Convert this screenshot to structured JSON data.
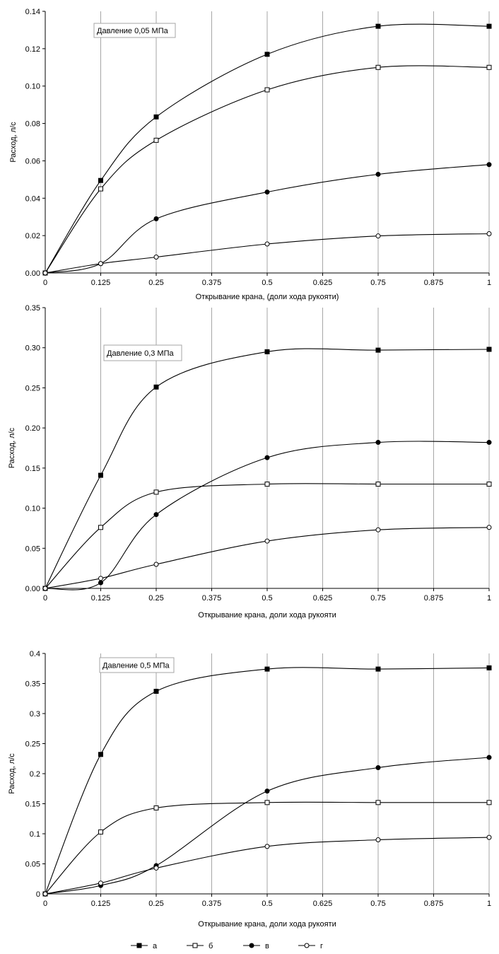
{
  "chart_data": [
    {
      "type": "line",
      "annotation": "Давление 0,05 МПа",
      "xlabel": "Открывание крана, (доли хода рукояти)",
      "ylabel": "Расход, л/с",
      "x": [
        0,
        0.125,
        0.25,
        0.5,
        0.75,
        1
      ],
      "x_ticks": [
        "0",
        "0.125",
        "0.25",
        "0.375",
        "0.5",
        "0.625",
        "0.75",
        "0.875",
        "1"
      ],
      "y_ticks": [
        "0.00",
        "0.02",
        "0.04",
        "0.06",
        "0.08",
        "0.10",
        "0.12",
        "0.14"
      ],
      "xlim": [
        0,
        1
      ],
      "ylim": [
        0,
        0.14
      ],
      "grid": "vertical",
      "series": [
        {
          "name": "а",
          "marker": "filled-square",
          "values": [
            0,
            0.0495,
            0.0835,
            0.117,
            0.132,
            0.132
          ]
        },
        {
          "name": "б",
          "marker": "open-square",
          "values": [
            0,
            0.045,
            0.071,
            0.098,
            0.11,
            0.11
          ]
        },
        {
          "name": "в",
          "marker": "filled-circle",
          "values": [
            0,
            0.005,
            0.029,
            0.0433,
            0.0528,
            0.058
          ]
        },
        {
          "name": "г",
          "marker": "open-circle",
          "values": [
            0,
            0.005,
            0.0085,
            0.0155,
            0.0198,
            0.021
          ]
        }
      ]
    },
    {
      "type": "line",
      "annotation": "Давление 0,3 МПа",
      "xlabel": "Открывание крана,  доли хода рукояти",
      "ylabel": "Расход, л/с",
      "x": [
        0,
        0.125,
        0.25,
        0.5,
        0.75,
        1
      ],
      "x_ticks": [
        "0",
        "0.125",
        "0.25",
        "0.375",
        "0.5",
        "0.625",
        "0.75",
        "0.875",
        "1"
      ],
      "y_ticks": [
        "0.00",
        "0.05",
        "0.10",
        "0.15",
        "0.20",
        "0.25",
        "0.30",
        "0.35"
      ],
      "xlim": [
        0,
        1
      ],
      "ylim": [
        0,
        0.35
      ],
      "grid": "vertical",
      "series": [
        {
          "name": "а",
          "marker": "filled-square",
          "values": [
            0,
            0.141,
            0.251,
            0.295,
            0.297,
            0.298
          ]
        },
        {
          "name": "б",
          "marker": "open-square",
          "values": [
            0,
            0.076,
            0.12,
            0.13,
            0.13,
            0.13
          ]
        },
        {
          "name": "в",
          "marker": "filled-circle",
          "values": [
            0,
            0.007,
            0.092,
            0.163,
            0.182,
            0.182
          ]
        },
        {
          "name": "г",
          "marker": "open-circle",
          "values": [
            0,
            0.0125,
            0.03,
            0.059,
            0.073,
            0.076
          ]
        }
      ]
    },
    {
      "type": "line",
      "annotation": "Давление 0,5 МПа",
      "xlabel": "Открывание крана, доли хода рукояти",
      "ylabel": "Расход, л/с",
      "x": [
        0,
        0.125,
        0.25,
        0.5,
        0.75,
        1
      ],
      "x_ticks": [
        "0",
        "0.125",
        "0.25",
        "0.375",
        "0.5",
        "0.625",
        "0.75",
        "0.875",
        "1"
      ],
      "y_ticks": [
        "0",
        "0.05",
        "0.1",
        "0.15",
        "0.2",
        "0.25",
        "0.3",
        "0.35",
        "0.4"
      ],
      "xlim": [
        0,
        1
      ],
      "ylim": [
        0,
        0.4
      ],
      "grid": "vertical",
      "series": [
        {
          "name": "а",
          "marker": "filled-square",
          "values": [
            0,
            0.232,
            0.337,
            0.374,
            0.374,
            0.376
          ]
        },
        {
          "name": "б",
          "marker": "open-square",
          "values": [
            0,
            0.103,
            0.143,
            0.152,
            0.152,
            0.152
          ]
        },
        {
          "name": "в",
          "marker": "filled-circle",
          "values": [
            0,
            0.014,
            0.047,
            0.171,
            0.21,
            0.227
          ]
        },
        {
          "name": "г",
          "marker": "open-circle",
          "values": [
            0,
            0.018,
            0.043,
            0.079,
            0.09,
            0.094
          ]
        }
      ]
    }
  ],
  "legend": {
    "placement": "bottom",
    "items": [
      {
        "label": "а",
        "marker": "filled-square"
      },
      {
        "label": "б",
        "marker": "open-square"
      },
      {
        "label": "в",
        "marker": "filled-circle"
      },
      {
        "label": "г",
        "marker": "open-circle"
      }
    ]
  },
  "colors": {
    "line": "#000000",
    "grid": "#a6a6a6",
    "background": "#ffffff"
  }
}
